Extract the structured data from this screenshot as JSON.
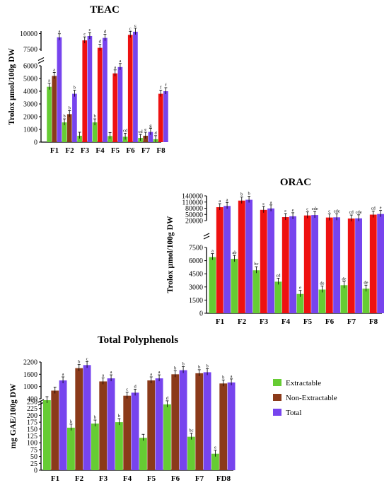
{
  "colors": {
    "extractable": "#66cc33",
    "non_extractable": "#8b3a1a",
    "total": "#7744ee",
    "f3_f6_nonext": "#ee1111",
    "axis": "#000000"
  },
  "legend": {
    "items": [
      "Extractable",
      "Non-Extractable",
      "Total"
    ],
    "placement": "right"
  },
  "chart_data": [
    {
      "type": "bar",
      "title": "TEAC",
      "ylabel": "Trolox μmol/100g DW",
      "categories": [
        "F1",
        "F2",
        "F3",
        "F4",
        "F5",
        "F6",
        "F7",
        "F8"
      ],
      "broken_axis": {
        "lower": [
          0,
          6000
        ],
        "upper": [
          7200,
          10400
        ]
      },
      "lower_ticks": [
        "0",
        "1000",
        "2000",
        "3000",
        "4000",
        "5000",
        "6000"
      ],
      "upper_ticks": [
        "7500",
        "10000"
      ],
      "series": [
        {
          "name": "Extractable",
          "values": [
            4350,
            1550,
            500,
            1550,
            480,
            420,
            330,
            230
          ],
          "sig": [
            "a",
            "b",
            "",
            "b",
            "",
            "cd",
            "cd",
            "d"
          ]
        },
        {
          "name": "Non-Extractable",
          "values": [
            5200,
            2200,
            8900,
            7700,
            5400,
            9800,
            500,
            3800
          ],
          "sig": [
            "a",
            "b",
            "c",
            "d",
            "a",
            "c",
            "e",
            "f"
          ]
        },
        {
          "name": "Total",
          "values": [
            9400,
            3800,
            9600,
            9300,
            5900,
            10300,
            800,
            4000
          ],
          "sig": [
            "a",
            "b",
            "c",
            "d",
            "a",
            "c",
            "g",
            "f"
          ]
        }
      ]
    },
    {
      "type": "bar",
      "title": "ORAC",
      "ylabel": "Trolox μmol/100g DW",
      "categories": [
        "F1",
        "F2",
        "F3",
        "F4",
        "F5",
        "F6",
        "F7",
        "F8"
      ],
      "broken_axis": {
        "lower": [
          0,
          7500
        ],
        "upper": [
          20000,
          140000
        ]
      },
      "lower_ticks": [
        "0",
        "1500",
        "3000",
        "4500",
        "6000",
        "7500"
      ],
      "upper_ticks": [
        "20000",
        "50000",
        "80000",
        "110000",
        "140000"
      ],
      "series": [
        {
          "name": "Extractable",
          "values": [
            6400,
            6200,
            4900,
            3600,
            2200,
            2700,
            3200,
            2800
          ],
          "sig": [
            "a",
            "ab",
            "bc",
            "cd",
            "e",
            "de",
            "de",
            "de"
          ]
        },
        {
          "name": "Non-Extractable",
          "values": [
            85000,
            117000,
            72000,
            37000,
            45000,
            35000,
            30000,
            49000
          ],
          "sig": [
            "a",
            "b",
            "c",
            "c",
            "c",
            "c",
            "cd",
            "cd"
          ]
        },
        {
          "name": "Total",
          "values": [
            91000,
            121000,
            79000,
            41000,
            47000,
            36000,
            31000,
            52000
          ],
          "sig": [
            "a",
            "b",
            "a",
            "e",
            "cde",
            "cde",
            "cde",
            "e"
          ]
        }
      ]
    },
    {
      "type": "bar",
      "title": "Total Polyphenols",
      "ylabel": "mg GAE/100g DW",
      "categories": [
        "F1",
        "F2",
        "F3",
        "F4",
        "F5",
        "F6",
        "F7",
        "FD8"
      ],
      "broken_axis": {
        "lower": [
          0,
          250
        ],
        "upper": [
          400,
          2200
        ]
      },
      "lower_ticks": [
        "0",
        "25",
        "50",
        "75",
        "100",
        "125",
        "150",
        "175",
        "200",
        "225",
        "250"
      ],
      "upper_ticks": [
        "400",
        "1000",
        "1600",
        "2200"
      ],
      "series": [
        {
          "name": "Extractable",
          "values": [
            300,
            155,
            170,
            175,
            118,
            240,
            122,
            60
          ],
          "sig": [
            "",
            "b",
            "b",
            "b",
            "",
            "d",
            "bc",
            "e"
          ]
        },
        {
          "name": "Non-Extractable",
          "values": [
            800,
            1900,
            1250,
            550,
            1300,
            1600,
            1650,
            1150
          ],
          "sig": [
            "",
            "b",
            "a",
            "c",
            "a",
            "b",
            "b",
            "b"
          ]
        },
        {
          "name": "Total",
          "values": [
            1300,
            2050,
            1400,
            700,
            1400,
            1800,
            1700,
            1200
          ],
          "sig": [
            "a",
            "c",
            "a",
            "d",
            "a",
            "b",
            "b",
            "a"
          ]
        }
      ]
    }
  ]
}
